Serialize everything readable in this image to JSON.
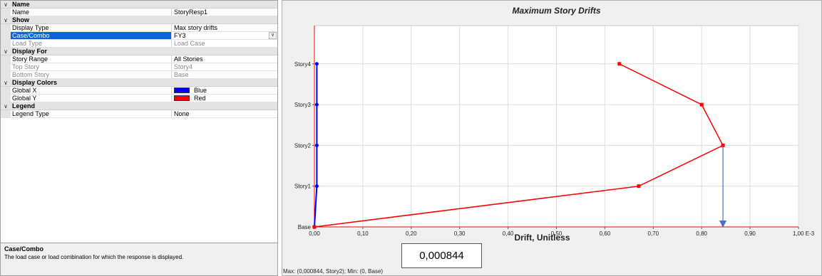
{
  "property_grid": {
    "sections": [
      {
        "key": "name",
        "label": "Name",
        "rows": [
          {
            "name": "Name",
            "value": "StoryResp1"
          }
        ]
      },
      {
        "key": "show",
        "label": "Show",
        "rows": [
          {
            "name": "Display Type",
            "value": "Max story drifts"
          },
          {
            "name": "Case/Combo",
            "value": "FY3",
            "selected": true,
            "dropdown": true
          },
          {
            "name": "Load Type",
            "value": "Load Case",
            "disabled": true
          }
        ]
      },
      {
        "key": "display-for",
        "label": "Display For",
        "rows": [
          {
            "name": "Story Range",
            "value": "All Stories"
          },
          {
            "name": "Top Story",
            "value": "Story4",
            "disabled": true
          },
          {
            "name": "Bottom Story",
            "value": "Base",
            "disabled": true
          }
        ]
      },
      {
        "key": "display-colors",
        "label": "Display Colors",
        "rows": [
          {
            "name": "Global X",
            "value": "Blue",
            "swatch": "#0000ff"
          },
          {
            "name": "Global Y",
            "value": "Red",
            "swatch": "#ff0000"
          }
        ]
      },
      {
        "key": "legend",
        "label": "Legend",
        "rows": [
          {
            "name": "Legend Type",
            "value": "None"
          }
        ]
      }
    ]
  },
  "help": {
    "title": "Case/Combo",
    "text": "The load case or load combination for which the response is displayed."
  },
  "status": {
    "text": "Max: (0,000844, Story2);   Min: (0, Base)"
  },
  "callout": {
    "text": "0,000844",
    "arrow_x": 0.844,
    "arrow_color": "#4472c4"
  },
  "chart_data": {
    "type": "line",
    "title": "Maximum Story Drifts",
    "xlabel": "Drift, Unitless",
    "ylabel": "",
    "x_axis_unit": "E-3",
    "xlim": [
      0,
      1.0
    ],
    "x_ticks": [
      0,
      0.1,
      0.2,
      0.3,
      0.4,
      0.5,
      0.6,
      0.7,
      0.8,
      0.9,
      1.0
    ],
    "x_tick_labels": [
      "0,00",
      "0,10",
      "0,20",
      "0,30",
      "0,40",
      "0,50",
      "0,60",
      "0,70",
      "0,80",
      "0,90",
      "1,00 E-3"
    ],
    "categories": [
      "Base",
      "Story1",
      "Story2",
      "Story3",
      "Story4"
    ],
    "grid": true,
    "series": [
      {
        "name": "Global X",
        "color": "#0000ff",
        "points": [
          [
            0,
            0
          ],
          [
            0.005,
            1
          ],
          [
            0.005,
            2
          ],
          [
            0.005,
            3
          ],
          [
            0.005,
            4
          ]
        ]
      },
      {
        "name": "Global Y",
        "color": "#ff0000",
        "points": [
          [
            0,
            0
          ],
          [
            0.67,
            1
          ],
          [
            0.844,
            2
          ],
          [
            0.8,
            3
          ],
          [
            0.63,
            4
          ]
        ]
      }
    ]
  }
}
